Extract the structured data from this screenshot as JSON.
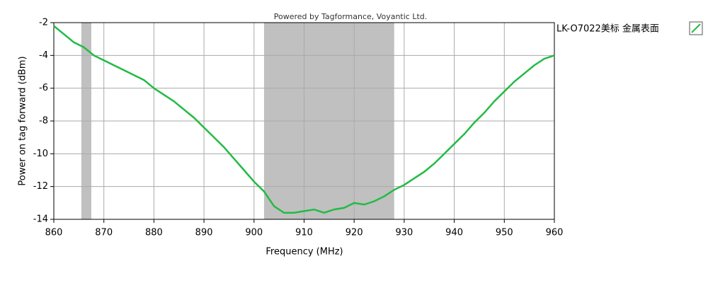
{
  "chart_data": {
    "type": "line",
    "title": "Powered by Tagformance, Voyantic Ltd.",
    "x_label": "Frequency (MHz)",
    "y_label": "Power on tag forward (dBm)",
    "xlim": [
      860,
      960
    ],
    "ylim": [
      -14,
      -2
    ],
    "xticks": [
      860,
      870,
      880,
      890,
      900,
      910,
      920,
      930,
      940,
      950,
      960
    ],
    "yticks": [
      -14,
      -12,
      -10,
      -8,
      -6,
      -4,
      -2
    ],
    "grid": true,
    "bands": [
      [
        865.5,
        867.5
      ],
      [
        902,
        928
      ]
    ],
    "band_color": "#c0c0c0",
    "legend": "right",
    "series": [
      {
        "name": "LK-O7022美标 金属表面",
        "color": "#22bb44",
        "x": [
          860,
          862,
          864,
          866,
          868,
          870,
          872,
          874,
          876,
          878,
          880,
          882,
          884,
          886,
          888,
          890,
          892,
          894,
          896,
          898,
          900,
          902,
          904,
          906,
          908,
          910,
          912,
          914,
          916,
          918,
          920,
          922,
          924,
          926,
          928,
          930,
          932,
          934,
          936,
          938,
          940,
          942,
          944,
          946,
          948,
          950,
          952,
          954,
          956,
          958,
          960
        ],
        "values": [
          -2.2,
          -2.7,
          -3.2,
          -3.5,
          -4.0,
          -4.3,
          -4.6,
          -4.9,
          -5.2,
          -5.5,
          -6.0,
          -6.4,
          -6.8,
          -7.3,
          -7.8,
          -8.4,
          -9.0,
          -9.6,
          -10.3,
          -11.0,
          -11.7,
          -12.3,
          -13.2,
          -13.6,
          -13.6,
          -13.5,
          -13.4,
          -13.6,
          -13.4,
          -13.3,
          -13.0,
          -13.1,
          -12.9,
          -12.6,
          -12.2,
          -11.9,
          -11.5,
          -11.1,
          -10.6,
          -10.0,
          -9.4,
          -8.8,
          -8.1,
          -7.5,
          -6.8,
          -6.2,
          -5.6,
          -5.1,
          -4.6,
          -4.2,
          -4.0
        ]
      }
    ]
  }
}
